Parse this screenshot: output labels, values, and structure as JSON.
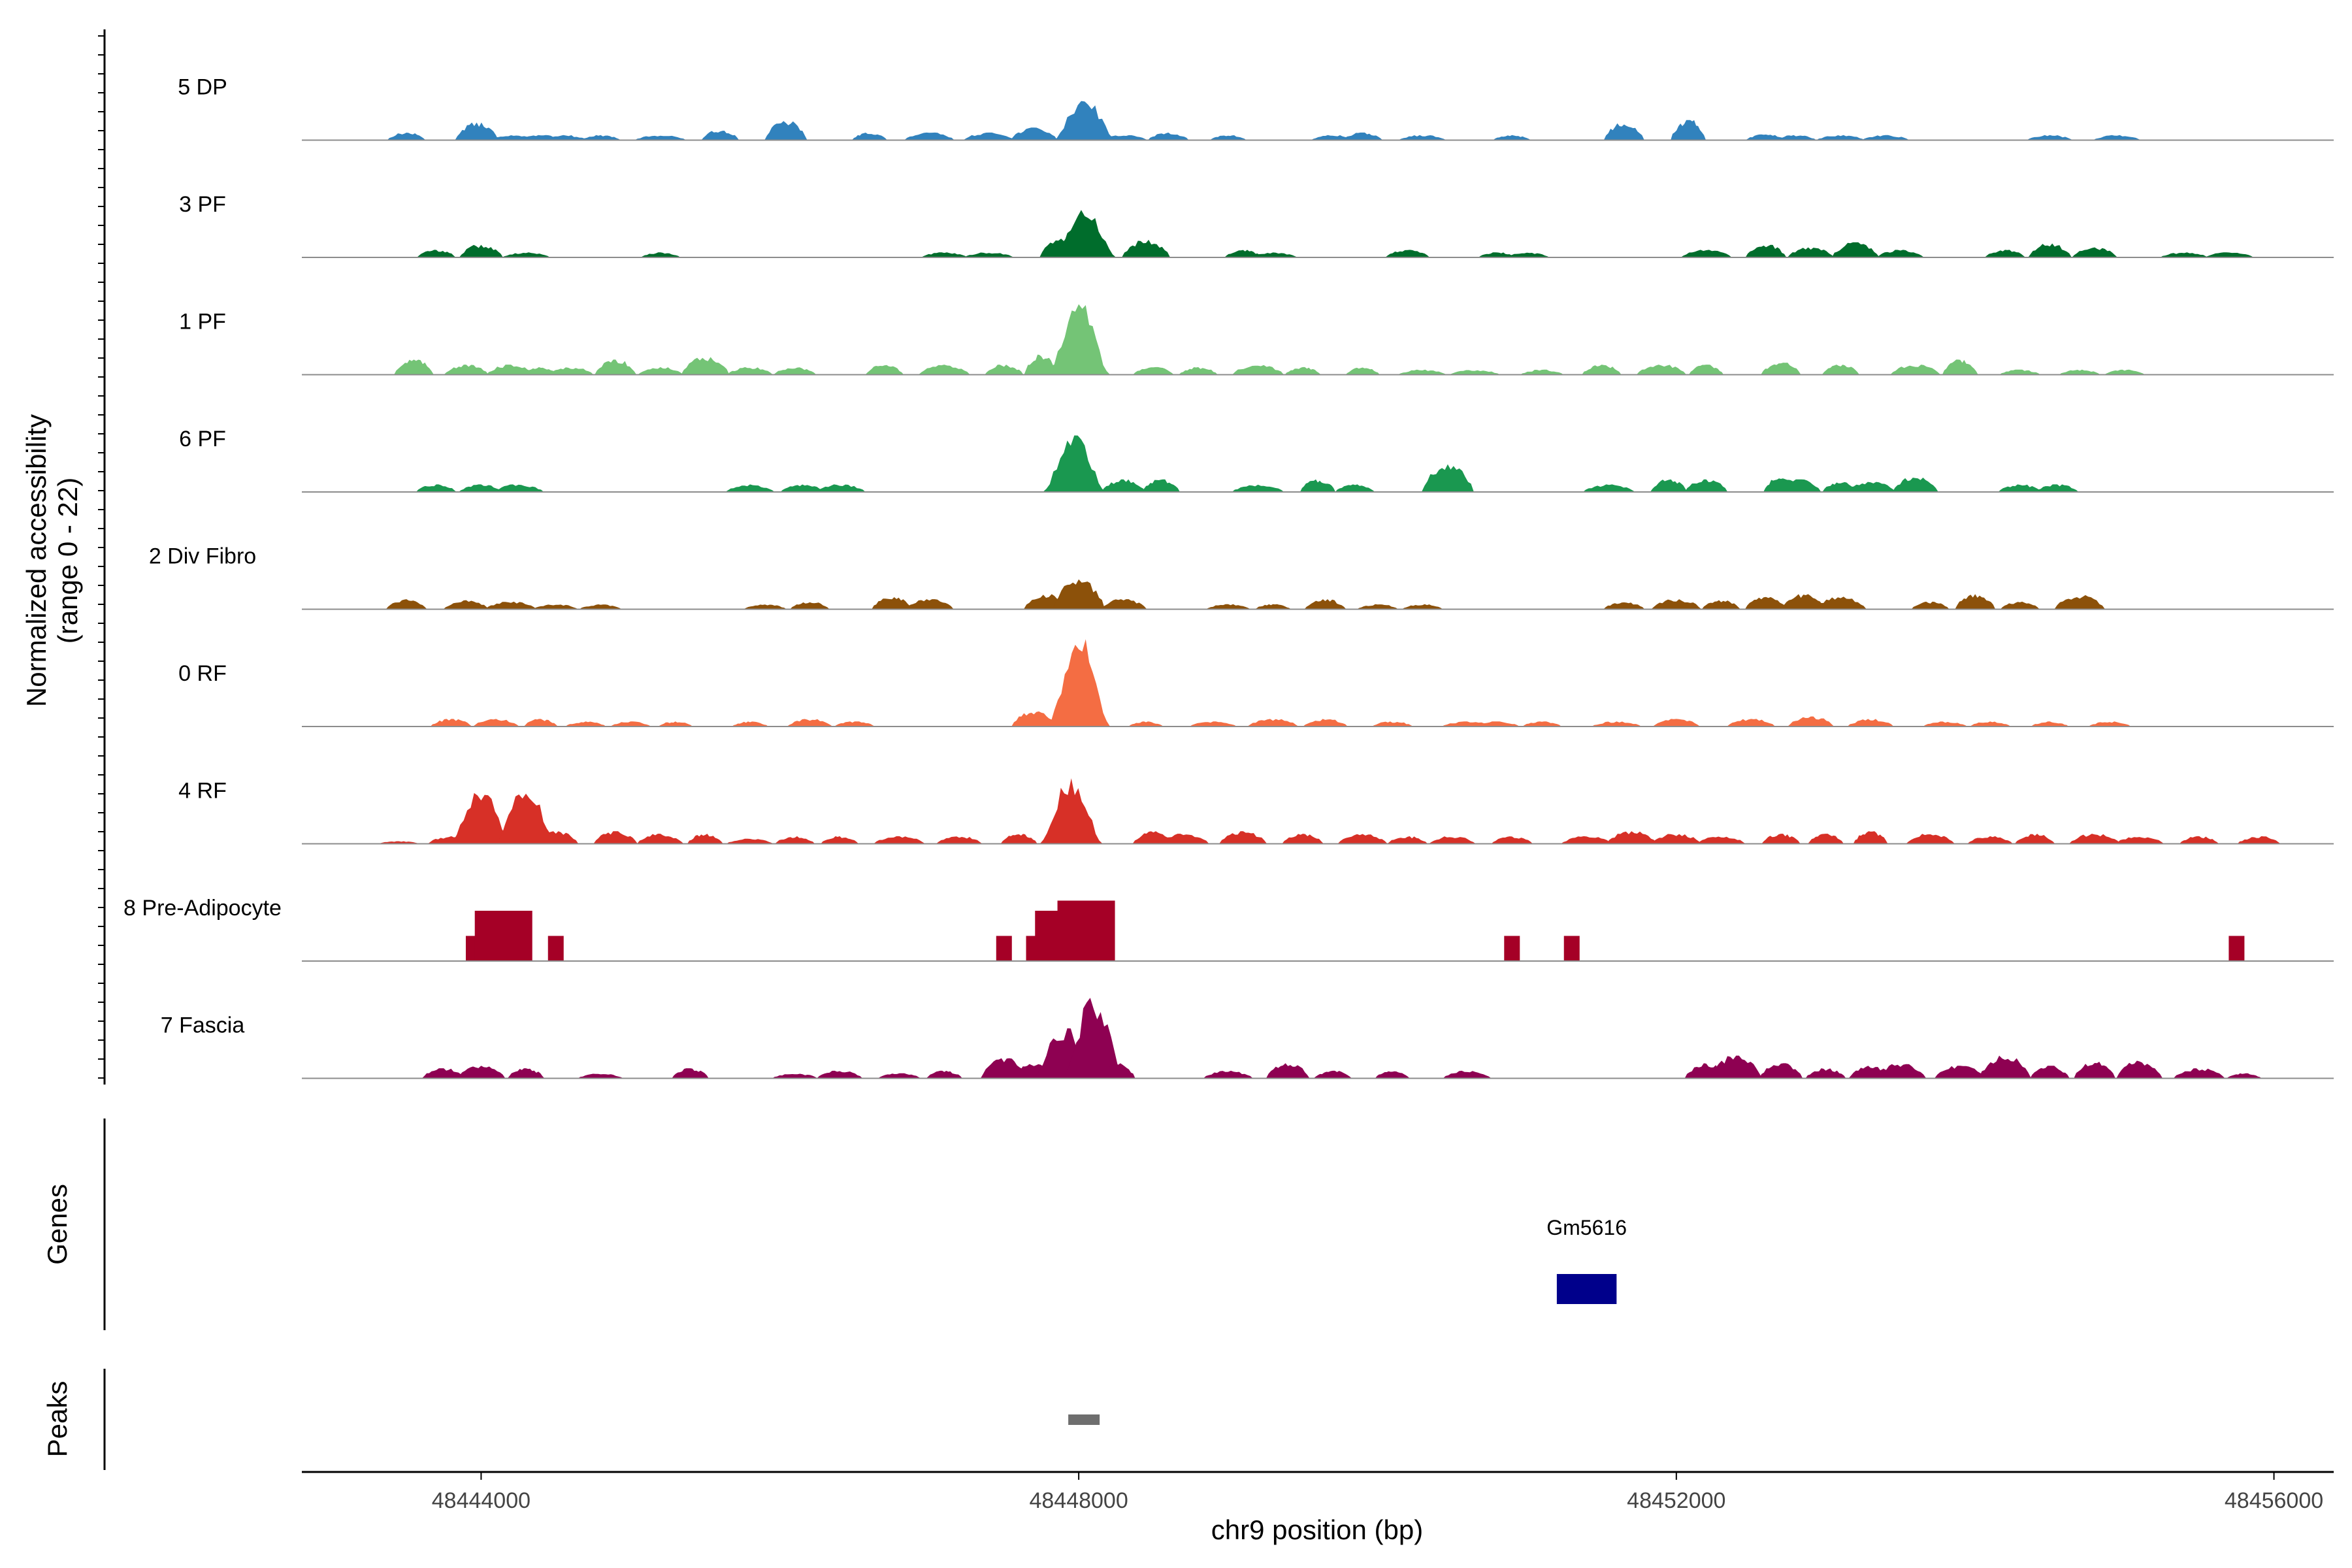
{
  "chart_data": {
    "type": "area",
    "title": "",
    "ylabel_line1": "Normalized accessibility",
    "ylabel_line2": "(range 0 - 22)",
    "yrange": [
      0,
      22
    ],
    "xlabel": "chr9 position (bp)",
    "xlim": [
      48442800,
      48456400
    ],
    "x_ticks": [
      {
        "value": 48444000,
        "label": "48444000"
      },
      {
        "value": 48448000,
        "label": "48448000"
      },
      {
        "value": 48452000,
        "label": "48452000"
      },
      {
        "value": 48456000,
        "label": "48456000"
      }
    ],
    "tracks": [
      {
        "name": "5 DP",
        "color": "#3182bd",
        "peaks": [
          [
            48443500,
            1.5
          ],
          [
            48443970,
            3.5
          ],
          [
            48444200,
            1
          ],
          [
            48444400,
            1
          ],
          [
            48444550,
            1
          ],
          [
            48444800,
            1
          ],
          [
            48445200,
            1
          ],
          [
            48445600,
            2
          ],
          [
            48446040,
            3.8
          ],
          [
            48446600,
            1.5
          ],
          [
            48447000,
            1.5
          ],
          [
            48447400,
            1.5
          ],
          [
            48447700,
            2.5
          ],
          [
            48448040,
            8.5
          ],
          [
            48448300,
            1
          ],
          [
            48448600,
            1.5
          ],
          [
            48449000,
            1
          ],
          [
            48449700,
            1
          ],
          [
            48449900,
            1.5
          ],
          [
            48450300,
            1
          ],
          [
            48450900,
            1
          ],
          [
            48451650,
            3.5
          ],
          [
            48452080,
            4
          ],
          [
            48452600,
            1.2
          ],
          [
            48452800,
            1
          ],
          [
            48453100,
            1
          ],
          [
            48453400,
            1
          ],
          [
            48454500,
            1
          ],
          [
            48454950,
            1
          ]
        ]
      },
      {
        "name": "3 PF",
        "color": "#006d2c",
        "peaks": [
          [
            48443700,
            1.5
          ],
          [
            48444000,
            2.5
          ],
          [
            48444300,
            1
          ],
          [
            48445200,
            1
          ],
          [
            48447100,
            1
          ],
          [
            48447400,
            1
          ],
          [
            48447900,
            4
          ],
          [
            48448040,
            9.5
          ],
          [
            48448450,
            3.5
          ],
          [
            48449100,
            1.5
          ],
          [
            48449300,
            1
          ],
          [
            48450200,
            1.5
          ],
          [
            48450800,
            1
          ],
          [
            48451000,
            1
          ],
          [
            48452200,
            1.5
          ],
          [
            48452600,
            2.5
          ],
          [
            48452900,
            2
          ],
          [
            48453200,
            3
          ],
          [
            48453500,
            1.5
          ],
          [
            48454200,
            1.5
          ],
          [
            48454500,
            2.8
          ],
          [
            48454800,
            2
          ],
          [
            48455400,
            1
          ],
          [
            48455700,
            1
          ]
        ]
      },
      {
        "name": "1 PF",
        "color": "#74c476",
        "peaks": [
          [
            48443550,
            3
          ],
          [
            48443900,
            2
          ],
          [
            48444200,
            2
          ],
          [
            48444400,
            1.5
          ],
          [
            48444600,
            1.5
          ],
          [
            48444900,
            3
          ],
          [
            48445200,
            1.5
          ],
          [
            48445500,
            3.5
          ],
          [
            48445800,
            1.5
          ],
          [
            48446100,
            1.5
          ],
          [
            48446700,
            2
          ],
          [
            48447100,
            2
          ],
          [
            48447500,
            2
          ],
          [
            48447750,
            4
          ],
          [
            48448000,
            14
          ],
          [
            48448500,
            1.5
          ],
          [
            48448800,
            1.5
          ],
          [
            48449200,
            2
          ],
          [
            48449500,
            1.5
          ],
          [
            48449900,
            1.5
          ],
          [
            48450300,
            1
          ],
          [
            48450650,
            1
          ],
          [
            48451100,
            1
          ],
          [
            48451500,
            2
          ],
          [
            48451900,
            2
          ],
          [
            48452200,
            2
          ],
          [
            48452700,
            2.5
          ],
          [
            48453100,
            2
          ],
          [
            48453600,
            2
          ],
          [
            48453900,
            3
          ],
          [
            48454300,
            1
          ],
          [
            48454700,
            1
          ],
          [
            48455000,
            1
          ]
        ]
      },
      {
        "name": "6 PF",
        "color": "#1a9850",
        "peaks": [
          [
            48443700,
            1.5
          ],
          [
            48444000,
            1.5
          ],
          [
            48444250,
            1.5
          ],
          [
            48445800,
            1.5
          ],
          [
            48446150,
            1.5
          ],
          [
            48446400,
            1.5
          ],
          [
            48447970,
            11.5
          ],
          [
            48448300,
            2.5
          ],
          [
            48448550,
            2.5
          ],
          [
            48449200,
            1.5
          ],
          [
            48449600,
            2.5
          ],
          [
            48449850,
            1.5
          ],
          [
            48450470,
            5.5
          ],
          [
            48451550,
            1.5
          ],
          [
            48451950,
            2.5
          ],
          [
            48452200,
            2.5
          ],
          [
            48452700,
            3
          ],
          [
            48452800,
            2.5
          ],
          [
            48453100,
            2
          ],
          [
            48453300,
            2
          ],
          [
            48453600,
            3
          ],
          [
            48454300,
            1.5
          ],
          [
            48454550,
            1.5
          ]
        ]
      },
      {
        "name": "2 Div Fibro",
        "color": "#8c510a",
        "peaks": [
          [
            48443500,
            2
          ],
          [
            48443900,
            1.8
          ],
          [
            48444200,
            1.5
          ],
          [
            48444500,
            1
          ],
          [
            48444800,
            1
          ],
          [
            48445900,
            1
          ],
          [
            48446200,
            1.5
          ],
          [
            48446750,
            2.5
          ],
          [
            48447000,
            2
          ],
          [
            48447800,
            3
          ],
          [
            48448000,
            6
          ],
          [
            48448300,
            2
          ],
          [
            48449000,
            1
          ],
          [
            48449300,
            1
          ],
          [
            48449650,
            2
          ],
          [
            48450000,
            1
          ],
          [
            48450300,
            1
          ],
          [
            48451650,
            1.5
          ],
          [
            48452000,
            2
          ],
          [
            48452300,
            1.8
          ],
          [
            48452600,
            2.5
          ],
          [
            48452850,
            3
          ],
          [
            48453100,
            2.5
          ],
          [
            48453700,
            1.5
          ],
          [
            48454000,
            3
          ],
          [
            48454300,
            1.5
          ],
          [
            48454700,
            2.8
          ]
        ]
      },
      {
        "name": "0 RF",
        "color": "#f46d43",
        "peaks": [
          [
            48443800,
            1.5
          ],
          [
            48444100,
            1.5
          ],
          [
            48444400,
            1.5
          ],
          [
            48444700,
            1
          ],
          [
            48445000,
            1
          ],
          [
            48445300,
            1
          ],
          [
            48445800,
            1
          ],
          [
            48446200,
            1.5
          ],
          [
            48446500,
            1
          ],
          [
            48447700,
            3
          ],
          [
            48448000,
            17.5
          ],
          [
            48448450,
            1
          ],
          [
            48448900,
            1
          ],
          [
            48449300,
            1.5
          ],
          [
            48449650,
            1.5
          ],
          [
            48450100,
            1
          ],
          [
            48450600,
            1
          ],
          [
            48450800,
            1
          ],
          [
            48451100,
            1
          ],
          [
            48451600,
            1
          ],
          [
            48452000,
            1.5
          ],
          [
            48452500,
            1.5
          ],
          [
            48452900,
            2
          ],
          [
            48453300,
            1.5
          ],
          [
            48453800,
            1
          ],
          [
            48454100,
            1
          ],
          [
            48454500,
            1
          ],
          [
            48454900,
            1
          ]
        ]
      },
      {
        "name": "4 RF",
        "color": "#d73027",
        "peaks": [
          [
            48443450,
            0.5
          ],
          [
            48443800,
            1.5
          ],
          [
            48444000,
            10.5
          ],
          [
            48444300,
            11
          ],
          [
            48444500,
            2.5
          ],
          [
            48444900,
            2.5
          ],
          [
            48445200,
            2
          ],
          [
            48445500,
            2
          ],
          [
            48445800,
            1
          ],
          [
            48446100,
            1.5
          ],
          [
            48446400,
            1.5
          ],
          [
            48446800,
            1.5
          ],
          [
            48447200,
            1.5
          ],
          [
            48447600,
            2
          ],
          [
            48447950,
            13
          ],
          [
            48448500,
            2.5
          ],
          [
            48448700,
            2
          ],
          [
            48449100,
            2.5
          ],
          [
            48449500,
            2
          ],
          [
            48449900,
            2
          ],
          [
            48450200,
            1.5
          ],
          [
            48450500,
            1.5
          ],
          [
            48450900,
            1.5
          ],
          [
            48451400,
            1.5
          ],
          [
            48451700,
            2.5
          ],
          [
            48452000,
            2
          ],
          [
            48452300,
            1.5
          ],
          [
            48452700,
            2
          ],
          [
            48453000,
            2
          ],
          [
            48453300,
            2.5
          ],
          [
            48453700,
            2
          ],
          [
            48454100,
            1.5
          ],
          [
            48454400,
            2
          ],
          [
            48454800,
            2
          ],
          [
            48455100,
            1.5
          ],
          [
            48455500,
            1.5
          ],
          [
            48455900,
            1.5
          ]
        ]
      },
      {
        "name": "8 Pre-Adipocyte",
        "color": "#a50026",
        "peaks": [
          [
            48443950,
            5
          ],
          [
            48444150,
            10
          ],
          [
            48444500,
            5
          ],
          [
            48447500,
            5
          ],
          [
            48447700,
            5
          ],
          [
            48447900,
            10
          ],
          [
            48448050,
            12
          ],
          [
            48450900,
            5
          ],
          [
            48451300,
            5
          ],
          [
            48455750,
            5
          ]
        ]
      },
      {
        "name": "7 Fascia",
        "color": "#8e0152",
        "peaks": [
          [
            48443750,
            2
          ],
          [
            48444000,
            2.5
          ],
          [
            48444300,
            2
          ],
          [
            48444800,
            1
          ],
          [
            48445400,
            2
          ],
          [
            48446100,
            1
          ],
          [
            48446400,
            1.5
          ],
          [
            48446800,
            1
          ],
          [
            48447100,
            1.5
          ],
          [
            48447500,
            4
          ],
          [
            48447700,
            3
          ],
          [
            48447900,
            10
          ],
          [
            48448100,
            16
          ],
          [
            48448250,
            3
          ],
          [
            48449000,
            1.5
          ],
          [
            48449400,
            3
          ],
          [
            48449700,
            1.5
          ],
          [
            48450100,
            1.5
          ],
          [
            48450600,
            1.5
          ],
          [
            48452200,
            3
          ],
          [
            48452400,
            4.5
          ],
          [
            48452700,
            3
          ],
          [
            48453000,
            2
          ],
          [
            48453300,
            2.5
          ],
          [
            48453500,
            3
          ],
          [
            48453900,
            2.5
          ],
          [
            48454200,
            4.5
          ],
          [
            48454500,
            2.5
          ],
          [
            48454800,
            3.5
          ],
          [
            48455100,
            3.5
          ],
          [
            48455500,
            2
          ],
          [
            48455800,
            1
          ]
        ]
      }
    ],
    "genes": {
      "label": "Genes",
      "items": [
        {
          "name": "Gm5616",
          "start": 48451200,
          "end": 48451600,
          "color": "#00008b"
        }
      ]
    },
    "peaks_track": {
      "label": "Peaks",
      "items": [
        {
          "start": 48447930,
          "end": 48448140,
          "color": "#6e6e6e"
        }
      ]
    }
  }
}
